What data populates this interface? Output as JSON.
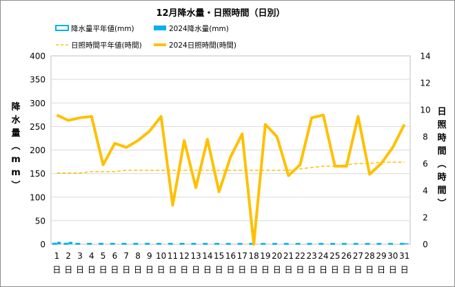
{
  "chart_data": {
    "type": "line",
    "title": "12月降水量・日照時間（日別）",
    "categories": [
      "1",
      "2",
      "3",
      "4",
      "5",
      "6",
      "7",
      "8",
      "9",
      "10",
      "11",
      "12",
      "13",
      "14",
      "15",
      "16",
      "17",
      "18",
      "19",
      "20",
      "21",
      "22",
      "23",
      "24",
      "25",
      "26",
      "27",
      "28",
      "29",
      "30",
      "31"
    ],
    "category_suffix": "日",
    "y_left": {
      "label": "降水量（mm）",
      "ylim": [
        0,
        400
      ],
      "ticks": [
        "0",
        "50",
        "100",
        "150",
        "200",
        "250",
        "300",
        "350",
        "400"
      ]
    },
    "y_right": {
      "label": "日照時間（時間）",
      "ylim": [
        0,
        14
      ],
      "ticks": [
        "0",
        "2",
        "4",
        "6",
        "8",
        "10",
        "12",
        "14"
      ]
    },
    "grid": true,
    "legend_position": "top-left",
    "series": [
      {
        "name": "降水量平年値(mm)",
        "axis": "left",
        "style": "bar-outline",
        "color": "#00b0f0",
        "values": [
          2.0,
          2.0,
          1.8,
          1.8,
          1.8,
          1.8,
          1.8,
          1.8,
          1.8,
          1.7,
          1.7,
          1.7,
          1.7,
          1.7,
          1.7,
          1.6,
          1.6,
          1.6,
          1.6,
          1.6,
          1.6,
          1.6,
          1.6,
          1.6,
          1.6,
          1.6,
          1.6,
          1.6,
          1.6,
          1.6,
          1.6
        ]
      },
      {
        "name": "2024降水量(mm)",
        "axis": "left",
        "style": "bar",
        "color": "#00b0f0",
        "values": [
          5.0,
          5.0,
          0,
          0,
          0,
          0,
          0,
          0,
          0,
          0,
          0,
          0,
          0,
          0,
          0,
          0,
          0,
          0,
          0,
          0,
          0,
          0,
          0,
          0,
          0,
          0,
          0,
          0,
          0,
          0,
          2.0
        ]
      },
      {
        "name": "日照時間平年値(時間)",
        "axis": "right",
        "style": "dashed-line",
        "color": "#ffc000",
        "values": [
          5.3,
          5.3,
          5.3,
          5.4,
          5.4,
          5.4,
          5.5,
          5.5,
          5.5,
          5.5,
          5.5,
          5.5,
          5.5,
          5.5,
          5.5,
          5.5,
          5.5,
          5.5,
          5.5,
          5.5,
          5.5,
          5.6,
          5.7,
          5.8,
          5.8,
          5.9,
          6.0,
          6.0,
          6.1,
          6.1,
          6.1
        ]
      },
      {
        "name": "2024日照時間(時間)",
        "axis": "right",
        "style": "line",
        "color": "#ffc000",
        "values": [
          9.6,
          9.2,
          9.4,
          9.5,
          5.9,
          7.5,
          7.2,
          7.7,
          8.4,
          9.5,
          2.9,
          7.7,
          4.2,
          7.8,
          3.9,
          6.5,
          8.2,
          0.0,
          8.9,
          8.0,
          5.1,
          5.9,
          9.4,
          9.6,
          5.8,
          5.8,
          9.5,
          5.2,
          6.0,
          7.2,
          8.9
        ]
      }
    ]
  }
}
